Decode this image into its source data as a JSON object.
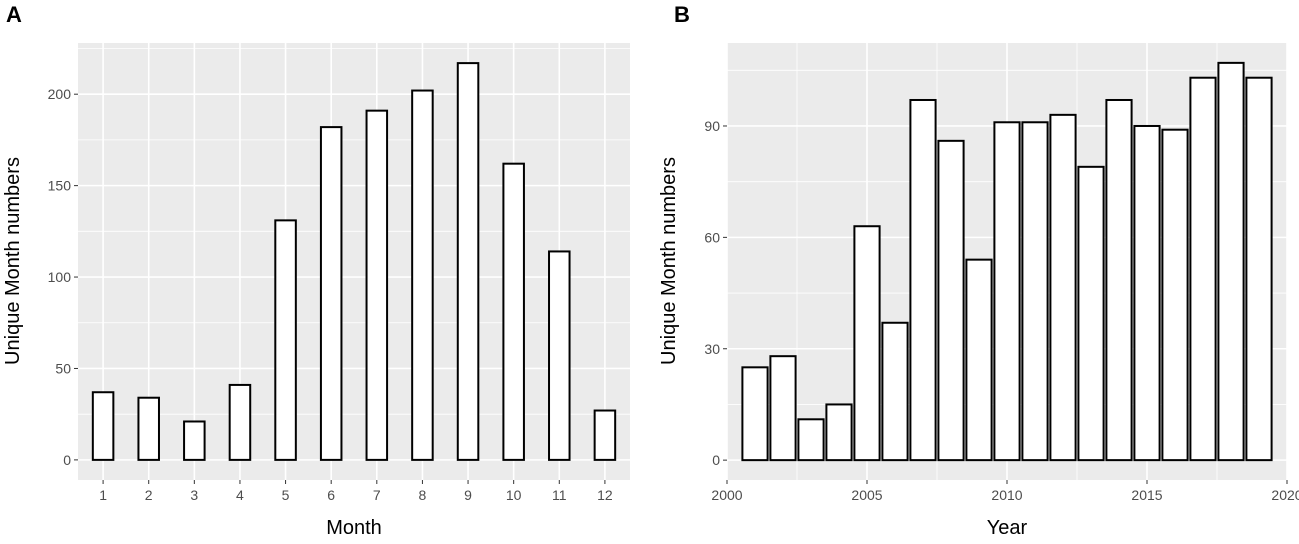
{
  "colors": {
    "panel_bg": "#ebebeb",
    "grid": "#ffffff",
    "bar_fill": "#ffffff",
    "bar_stroke": "#000000",
    "tick_text": "#4d4d4d"
  },
  "chart_data": [
    {
      "panel_label": "A",
      "type": "bar",
      "xlabel": "Month",
      "ylabel": "Unique Month numbers",
      "categories": [
        1,
        2,
        3,
        4,
        5,
        6,
        7,
        8,
        9,
        10,
        11,
        12
      ],
      "x": [
        1,
        2,
        3,
        4,
        5,
        6,
        7,
        8,
        9,
        10,
        11,
        12
      ],
      "values": [
        37,
        34,
        21,
        41,
        131,
        182,
        191,
        202,
        217,
        162,
        114,
        27
      ],
      "xlim": [
        0.45,
        12.55
      ],
      "ylim": [
        -11,
        228
      ],
      "xticks": [
        1,
        2,
        3,
        4,
        5,
        6,
        7,
        8,
        9,
        10,
        11,
        12
      ],
      "yticks": [
        0,
        50,
        100,
        150,
        200
      ],
      "grid": true
    },
    {
      "panel_label": "B",
      "type": "bar",
      "xlabel": "Year",
      "ylabel": "Unique Month numbers",
      "x": [
        2001,
        2002,
        2003,
        2004,
        2005,
        2006,
        2007,
        2008,
        2009,
        2010,
        2011,
        2012,
        2013,
        2014,
        2015,
        2016,
        2017,
        2018,
        2019
      ],
      "values": [
        25,
        28,
        11,
        15,
        63,
        37,
        97,
        86,
        54,
        91,
        91,
        93,
        79,
        97,
        90,
        89,
        103,
        107,
        103
      ],
      "xlim": [
        2000,
        2020
      ],
      "ylim": [
        -5.35,
        112.35
      ],
      "xticks": [
        2000,
        2005,
        2010,
        2015,
        2020
      ],
      "yticks": [
        0,
        30,
        60,
        90
      ],
      "grid": true
    }
  ]
}
